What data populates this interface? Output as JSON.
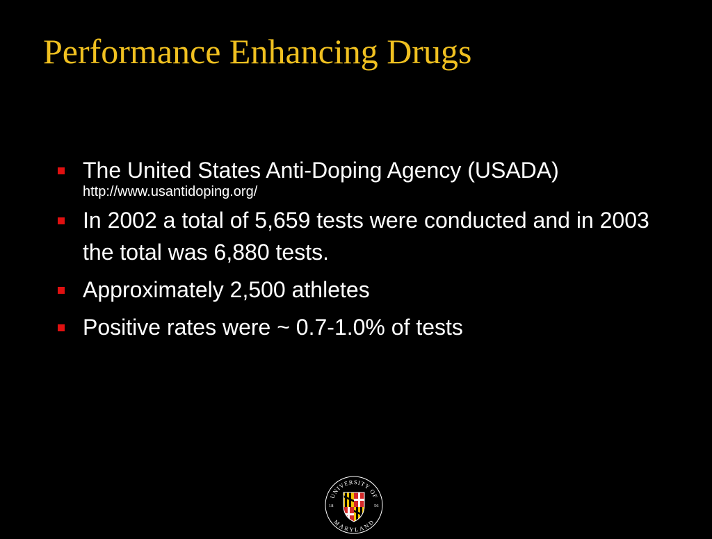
{
  "slide": {
    "title": "Performance Enhancing Drugs",
    "bullets": [
      {
        "text": "The United States Anti-Doping Agency (USADA)",
        "sub": "http://www.usantidoping.org/"
      },
      {
        "text": "In 2002 a total of 5,659 tests were conducted and in 2003 the total was 6,880 tests."
      },
      {
        "text": "Approximately 2,500 athletes"
      },
      {
        "text": "Positive rates were ~ 0.7-1.0% of tests"
      }
    ]
  },
  "logo": {
    "name": "university-of-maryland-seal",
    "top_text": "UNIVERSITY OF",
    "bottom_text": "MARYLAND",
    "year_left": "18",
    "year_right": "56"
  },
  "colors": {
    "background": "#000000",
    "title": "#f0c020",
    "body_text": "#ffffff",
    "bullet_marker": "#e01010",
    "maryland_red": "#d42a2a",
    "maryland_gold": "#f2c200",
    "maryland_black": "#000000",
    "maryland_white": "#ffffff"
  }
}
